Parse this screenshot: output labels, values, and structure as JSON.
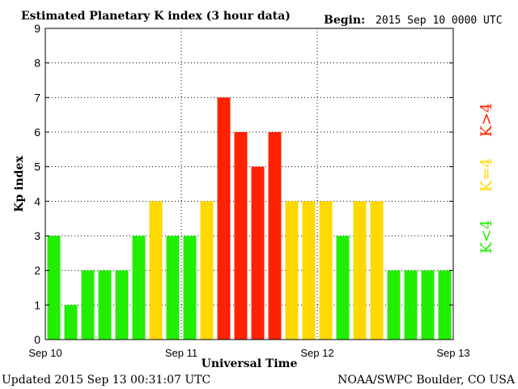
{
  "header": {
    "title": "Estimated Planetary K index (3 hour data)",
    "begin_label": "Begin:",
    "begin_value": "2015 Sep 10 0000 UTC"
  },
  "footer": {
    "updated": "Updated 2015 Sep 13 00:31:07 UTC",
    "credit": "NOAA/SWPC Boulder, CO USA"
  },
  "legend": {
    "items": [
      {
        "label": "K<4",
        "color": "#22ee00"
      },
      {
        "label": "K=4",
        "color": "#ffd800"
      },
      {
        "label": "K>4",
        "color": "#ff2200"
      }
    ]
  },
  "chart_data": {
    "type": "bar",
    "title": "Estimated Planetary K index (3 hour data)",
    "xlabel": "Universal Time",
    "ylabel": "Kp index",
    "ylim": [
      0,
      9
    ],
    "yticks": [
      0,
      1,
      2,
      3,
      4,
      5,
      6,
      7,
      8,
      9
    ],
    "xticks": [
      "Sep 10",
      "Sep 11",
      "Sep 12",
      "Sep 13"
    ],
    "grid": "dotted",
    "values": [
      3,
      1,
      2,
      2,
      2,
      3,
      4,
      3,
      3,
      4,
      7,
      6,
      5,
      6,
      4,
      4,
      4,
      3,
      4,
      4,
      2,
      2,
      2,
      2
    ],
    "colors": {
      "low": "#22ee00",
      "mid": "#ffd800",
      "high": "#ff2200"
    }
  }
}
